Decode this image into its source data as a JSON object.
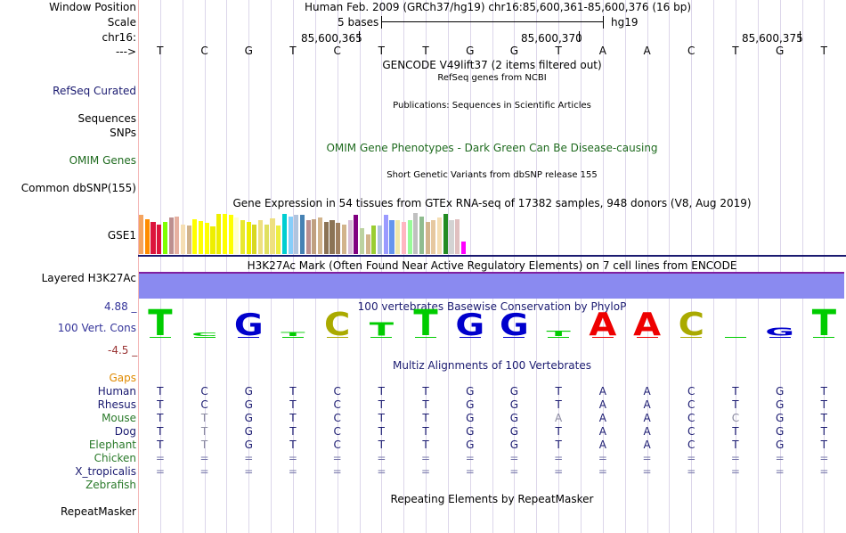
{
  "header": {
    "window_position_label": "Window Position",
    "window_position_text": "Human Feb. 2009 (GRCh37/hg19)   chr16:85,600,361-85,600,376 (16 bp)",
    "scale_label": "Scale",
    "scale_text": "5 bases",
    "scale_assembly": "hg19",
    "chrom_label": "chr16:",
    "ticks": [
      "85,600,365",
      "85,600,370",
      "85,600,375"
    ],
    "strand_label": "--->"
  },
  "sequence": [
    "T",
    "C",
    "G",
    "T",
    "C",
    "T",
    "T",
    "G",
    "G",
    "T",
    "A",
    "A",
    "C",
    "T",
    "G",
    "T"
  ],
  "tracks": {
    "gencode_title": "GENCODE V49lift37 (2 items filtered out)",
    "refseq_title": "RefSeq genes from NCBI",
    "refseq_label": "RefSeq Curated",
    "publications_title": "Publications: Sequences in Scientific Articles",
    "sequences_label": "Sequences",
    "snps_label": "SNPs",
    "omim_title": "OMIM Gene Phenotypes - Dark Green Can Be Disease-causing",
    "omim_label": "OMIM Genes",
    "dbsnp_title": "Short Genetic Variants from dbSNP release 155",
    "dbsnp_label": "Common dbSNP(155)",
    "gtex_title": "Gene Expression in 54 tissues from GTEx RNA-seq of 17382 samples, 948 donors (V8, Aug 2019)",
    "gtex_label": "GSE1",
    "h3k27ac_title": "H3K27Ac Mark (Often Found Near Active Regulatory Elements) on 7 cell lines from ENCODE",
    "h3k27ac_label": "Layered H3K27Ac",
    "cons_title": "100 vertebrates Basewise Conservation by PhyloP",
    "cons_label": "100 Vert. Cons",
    "cons_max": "4.88 _",
    "cons_min": "-4.5 _",
    "multiz_title": "Multiz Alignments of 100 Vertebrates",
    "gaps_label": "Gaps",
    "repeat_title": "Repeating Elements by RepeatMasker",
    "repeat_label": "RepeatMasker"
  },
  "colors": {
    "label_navy": "#1a1a70",
    "omim_green": "#1f6b1f",
    "gaps_orange": "#e08a00",
    "species_green": "#2a7a2a",
    "h3k27_fill": "#8a8af0",
    "h3k27_border": "#8020a0",
    "cons_max_color": "#333399",
    "cons_min_color": "#993333"
  },
  "gtex": {
    "values": [
      0.95,
      0.85,
      0.78,
      0.72,
      0.78,
      0.9,
      0.92,
      0.72,
      0.7,
      0.85,
      0.8,
      0.75,
      0.68,
      0.98,
      0.98,
      0.95,
      0.9,
      0.82,
      0.78,
      0.72,
      0.82,
      0.72,
      0.88,
      0.7,
      0.98,
      0.92,
      0.95,
      0.96,
      0.82,
      0.85,
      0.9,
      0.78,
      0.82,
      0.75,
      0.72,
      0.82,
      0.95,
      0.62,
      0.48,
      0.7,
      0.7,
      0.95,
      0.82,
      0.82,
      0.78,
      0.82,
      1.0,
      0.92,
      0.78,
      0.82,
      0.9,
      0.98,
      0.82,
      0.85,
      0.3
    ],
    "colors": [
      "#f4a460",
      "#ff8c00",
      "#dc143c",
      "#dc143c",
      "#7fff00",
      "#bc8f8f",
      "#e6b0a0",
      "#f5deb3",
      "#d2b48c",
      "#ffff00",
      "#ffff00",
      "#ffff00",
      "#eeee00",
      "#eeee00",
      "#ffff00",
      "#ffff00",
      "#ffffd0",
      "#e8e830",
      "#eeee00",
      "#d8d820",
      "#eee080",
      "#e0e060",
      "#eee080",
      "#eeee40",
      "#00ced1",
      "#87cefa",
      "#b0c4de",
      "#4682b4",
      "#bc8f8f",
      "#c0a080",
      "#d2b48c",
      "#8b7355",
      "#8b7355",
      "#a08060",
      "#d2b48c",
      "#d8bfd8",
      "#800080",
      "#bcd2a0",
      "#d2b48c",
      "#9acd32",
      "#b0c4de",
      "#9a9aff",
      "#6495ed",
      "#eee8aa",
      "#ffb6c1",
      "#98fb98",
      "#c0c0c0",
      "#8fbc8f",
      "#d2b48c",
      "#e6c8a0",
      "#f5deb3",
      "#228b22",
      "#d3d3d3",
      "#e0c0c0",
      "#ff00ff"
    ]
  },
  "conservation_logo": [
    {
      "base": "T",
      "color": "#00cc00",
      "size": 1.0
    },
    {
      "base": "C",
      "color": "#00cc00",
      "size": 0.12
    },
    {
      "base": "G",
      "color": "#0000cc",
      "size": 0.85
    },
    {
      "base": "T",
      "color": "#00cc00",
      "size": 0.15
    },
    {
      "base": "C",
      "color": "#aaaa00",
      "size": 0.9
    },
    {
      "base": "T",
      "color": "#00cc00",
      "size": 0.5
    },
    {
      "base": "T",
      "color": "#00cc00",
      "size": 1.0
    },
    {
      "base": "G",
      "color": "#0000cc",
      "size": 0.85
    },
    {
      "base": "G",
      "color": "#0000cc",
      "size": 0.85
    },
    {
      "base": "T",
      "color": "#00cc00",
      "size": 0.2
    },
    {
      "base": "A",
      "color": "#ee0000",
      "size": 0.9
    },
    {
      "base": "A",
      "color": "#ee0000",
      "size": 0.9
    },
    {
      "base": "C",
      "color": "#aaaa00",
      "size": 0.9
    },
    {
      "base": "T",
      "color": "#00cc00",
      "size": 0.0
    },
    {
      "base": "G",
      "color": "#0000cc",
      "size": 0.3
    },
    {
      "base": "T",
      "color": "#00cc00",
      "size": 1.0
    }
  ],
  "alignment": [
    {
      "species": "Human",
      "label_color": "#1a1a70",
      "bases": [
        "T",
        "C",
        "G",
        "T",
        "C",
        "T",
        "T",
        "G",
        "G",
        "T",
        "A",
        "A",
        "C",
        "T",
        "G",
        "T"
      ],
      "dim": []
    },
    {
      "species": "Rhesus",
      "label_color": "#1a1a70",
      "bases": [
        "T",
        "C",
        "G",
        "T",
        "C",
        "T",
        "T",
        "G",
        "G",
        "T",
        "A",
        "A",
        "C",
        "T",
        "G",
        "T"
      ],
      "dim": []
    },
    {
      "species": "Mouse",
      "label_color": "#2a7a2a",
      "bases": [
        "T",
        "T",
        "G",
        "T",
        "C",
        "T",
        "T",
        "G",
        "G",
        "A",
        "A",
        "A",
        "C",
        "C",
        "G",
        "T"
      ],
      "dim": [
        1,
        9,
        13
      ]
    },
    {
      "species": "Dog",
      "label_color": "#1a1a70",
      "bases": [
        "T",
        "T",
        "G",
        "T",
        "C",
        "T",
        "T",
        "G",
        "G",
        "T",
        "A",
        "A",
        "C",
        "T",
        "G",
        "T"
      ],
      "dim": [
        1
      ]
    },
    {
      "species": "Elephant",
      "label_color": "#2a7a2a",
      "bases": [
        "T",
        "T",
        "G",
        "T",
        "C",
        "T",
        "T",
        "G",
        "G",
        "T",
        "A",
        "A",
        "C",
        "T",
        "G",
        "T"
      ],
      "dim": [
        1
      ]
    },
    {
      "species": "Chicken",
      "label_color": "#2a7a2a",
      "bases": [
        "=",
        "=",
        "=",
        "=",
        "=",
        "=",
        "=",
        "=",
        "=",
        "=",
        "=",
        "=",
        "=",
        "=",
        "=",
        "="
      ],
      "dim": []
    },
    {
      "species": "X_tropicalis",
      "label_color": "#1a1a70",
      "bases": [
        "=",
        "=",
        "=",
        "=",
        "=",
        "=",
        "=",
        "=",
        "=",
        "=",
        "=",
        "=",
        "=",
        "=",
        "=",
        "="
      ],
      "dim": []
    },
    {
      "species": "Zebrafish",
      "label_color": "#2a7a2a",
      "bases": [],
      "dim": []
    }
  ]
}
